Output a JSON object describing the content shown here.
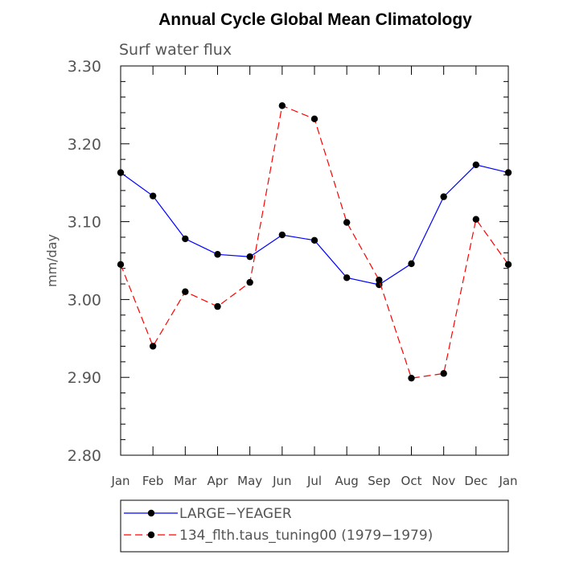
{
  "chart_data": {
    "type": "line",
    "title": "Annual Cycle Global Mean Climatology",
    "subtitle": "Surf water flux",
    "xlabel": "",
    "ylabel": "mm/day",
    "categories": [
      "Jan",
      "Feb",
      "Mar",
      "Apr",
      "May",
      "Jun",
      "Jul",
      "Aug",
      "Sep",
      "Oct",
      "Nov",
      "Dec",
      "Jan"
    ],
    "yticks": [
      "2.80",
      "2.90",
      "3.00",
      "3.10",
      "3.20",
      "3.30"
    ],
    "ylim": [
      2.8,
      3.3
    ],
    "grid": false,
    "legend_position": "bottom",
    "series": [
      {
        "name": "LARGE−YEAGER",
        "color": "#0000ff",
        "dash": "solid",
        "values": [
          3.163,
          3.133,
          3.078,
          3.058,
          3.055,
          3.083,
          3.076,
          3.028,
          3.019,
          3.046,
          3.132,
          3.173,
          3.163
        ]
      },
      {
        "name": "134_flth.taus_tuning00 (1979−1979)",
        "color": "#ff0000",
        "dash": "dashed",
        "values": [
          3.045,
          2.94,
          3.01,
          2.991,
          3.022,
          3.249,
          3.232,
          3.099,
          3.025,
          2.899,
          2.905,
          3.103,
          3.045
        ]
      }
    ]
  }
}
